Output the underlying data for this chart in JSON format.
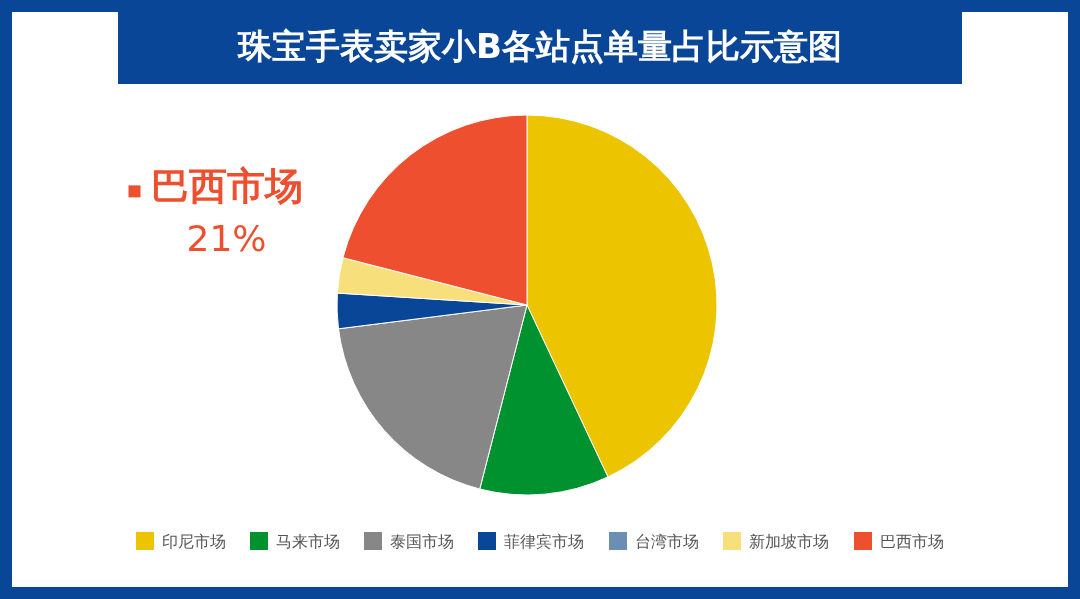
{
  "chart_data": {
    "type": "pie",
    "title": "珠宝手表卖家小B各站点单量占比示意图",
    "categories": [
      "印尼市场",
      "马来市场",
      "泰国市场",
      "菲律宾市场",
      "台湾市场",
      "新加坡市场",
      "巴西市场"
    ],
    "values": [
      43,
      11,
      19,
      3,
      0,
      3,
      21
    ],
    "colors": [
      "#ecc400",
      "#00922f",
      "#878787",
      "#0a4698",
      "#6a8fb3",
      "#f7e07c",
      "#ee4f2e"
    ],
    "value_labels": [
      null,
      null,
      null,
      null,
      null,
      null,
      "21%"
    ],
    "legend": "bottom"
  }
}
